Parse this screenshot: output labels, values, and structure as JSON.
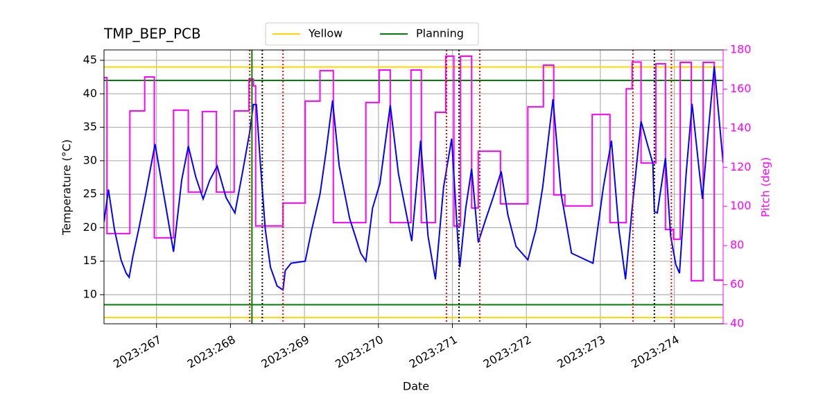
{
  "chart_data": {
    "type": "line",
    "title": "TMP_BEP_PCB",
    "xlabel": "Date",
    "ylabel": "Temperature (°C)",
    "y2label": "Pitch (deg)",
    "y2color": "magenta",
    "xlim": [
      266.29,
      274.66
    ],
    "ylim": [
      5.65,
      46.55
    ],
    "y2lim": [
      40,
      180
    ],
    "xticks": [
      {
        "value": 267,
        "label": "2023:267"
      },
      {
        "value": 268,
        "label": "2023:268"
      },
      {
        "value": 269,
        "label": "2023:269"
      },
      {
        "value": 270,
        "label": "2023:270"
      },
      {
        "value": 271,
        "label": "2023:271"
      },
      {
        "value": 272,
        "label": "2023:272"
      },
      {
        "value": 273,
        "label": "2023:273"
      },
      {
        "value": 274,
        "label": "2023:274"
      }
    ],
    "yticks": [
      10,
      15,
      20,
      25,
      30,
      35,
      40,
      45
    ],
    "y2ticks": [
      40,
      60,
      80,
      100,
      120,
      140,
      160,
      180
    ],
    "grid": true,
    "legend": "upper center",
    "series": [
      {
        "color": "blue",
        "x": [
          266.29,
          266.35,
          266.43,
          266.52,
          266.59,
          266.63,
          266.68,
          266.76,
          266.85,
          266.98,
          267.13,
          267.23,
          267.34,
          267.43,
          267.53,
          267.63,
          267.72,
          267.82,
          267.94,
          268.06,
          268.16,
          268.26,
          268.31,
          268.35,
          268.4,
          268.47,
          268.54,
          268.63,
          268.71,
          268.74,
          268.82,
          269.01,
          269.1,
          269.21,
          269.29,
          269.38,
          269.47,
          269.61,
          269.76,
          269.83,
          269.92,
          270.02,
          270.16,
          270.27,
          270.45,
          270.57,
          270.67,
          270.77,
          270.88,
          270.99,
          271.07,
          271.1,
          271.18,
          271.26,
          271.35,
          271.44,
          271.55,
          271.66,
          271.75,
          271.86,
          272.02,
          272.13,
          272.22,
          272.36,
          272.47,
          272.61,
          272.9,
          273.04,
          273.15,
          273.25,
          273.34,
          273.43,
          273.55,
          273.64,
          273.71,
          273.73,
          273.77,
          273.88,
          273.95,
          274.02,
          274.07,
          274.16,
          274.24,
          274.33,
          274.38,
          274.45,
          274.54,
          274.66
        ],
        "values": [
          20.9,
          25.7,
          19.8,
          15.2,
          13.2,
          12.6,
          15.7,
          19.8,
          24.8,
          32.5,
          22.9,
          16.4,
          27.1,
          32.2,
          27.6,
          24.3,
          27.1,
          29.2,
          24.5,
          22.2,
          28.1,
          34.3,
          38.4,
          38.4,
          30.2,
          19.8,
          14.1,
          11.3,
          10.7,
          13.6,
          14.7,
          15.0,
          19.8,
          25.0,
          31.2,
          39.0,
          29.2,
          21.4,
          16.2,
          15.0,
          22.9,
          26.6,
          38.3,
          28.1,
          18.0,
          33.0,
          18.8,
          12.3,
          26.0,
          33.3,
          18.8,
          14.1,
          22.9,
          28.8,
          17.8,
          20.9,
          24.5,
          28.4,
          21.9,
          17.2,
          15.2,
          19.8,
          26.0,
          39.2,
          25.0,
          16.2,
          14.7,
          26.0,
          33.0,
          19.8,
          12.3,
          22.9,
          35.9,
          32.3,
          29.6,
          22.4,
          22.2,
          30.4,
          18.8,
          14.5,
          13.2,
          28.1,
          38.5,
          29.2,
          24.3,
          33.3,
          44.1,
          29.7
        ]
      },
      {
        "color": "magenta",
        "axis": "y2",
        "x": [
          266.29,
          266.33,
          266.33,
          266.64,
          266.64,
          266.84,
          266.84,
          266.97,
          266.97,
          267.23,
          267.23,
          267.43,
          267.43,
          267.62,
          267.62,
          267.81,
          267.81,
          268.05,
          268.05,
          268.25,
          268.25,
          268.31,
          268.31,
          268.34,
          268.34,
          268.71,
          268.71,
          269.01,
          269.01,
          269.21,
          269.21,
          269.39,
          269.39,
          269.83,
          269.83,
          270.01,
          270.01,
          270.16,
          270.16,
          270.44,
          270.44,
          270.58,
          270.58,
          270.77,
          270.77,
          270.91,
          270.91,
          271.02,
          271.02,
          271.11,
          271.11,
          271.26,
          271.26,
          271.35,
          271.35,
          271.65,
          271.65,
          272.02,
          272.02,
          272.23,
          272.23,
          272.37,
          272.37,
          272.52,
          272.52,
          272.89,
          272.89,
          273.13,
          273.13,
          273.35,
          273.35,
          273.43,
          273.43,
          273.55,
          273.55,
          273.75,
          273.75,
          273.88,
          273.88,
          273.99,
          273.99,
          274.08,
          274.08,
          274.23,
          274.23,
          274.39,
          274.39,
          274.54,
          274.54,
          274.66
        ],
        "values": [
          165.8,
          165.8,
          86.1,
          86.1,
          148.8,
          148.8,
          166.2,
          166.2,
          83.9,
          83.9,
          149.2,
          149.2,
          107.3,
          107.3,
          148.5,
          148.5,
          107.3,
          107.3,
          148.8,
          148.8,
          165.1,
          165.1,
          161.6,
          161.6,
          90.0,
          90.0,
          101.7,
          101.7,
          153.8,
          153.8,
          169.4,
          169.4,
          91.7,
          91.7,
          153.1,
          153.1,
          169.7,
          169.7,
          91.7,
          91.7,
          169.7,
          169.7,
          91.7,
          91.7,
          148.1,
          148.1,
          176.8,
          176.8,
          90.0,
          90.0,
          176.8,
          176.8,
          99.2,
          99.2,
          128.2,
          128.2,
          101.3,
          101.3,
          150.9,
          150.9,
          172.2,
          172.2,
          105.9,
          105.9,
          100.2,
          100.2,
          147.0,
          147.0,
          91.7,
          91.7,
          160.1,
          160.1,
          173.8,
          173.8,
          122.2,
          122.2,
          172.9,
          172.9,
          88.2,
          88.2,
          83.2,
          83.2,
          173.6,
          173.6,
          62.0,
          62.0,
          173.6,
          173.6,
          62.3,
          62.3
        ]
      }
    ],
    "hlines": [
      {
        "name": "Yellow",
        "color": "gold",
        "values": [
          44,
          6.6
        ]
      },
      {
        "name": "Planning",
        "color": "green",
        "values": [
          42,
          8.5
        ]
      }
    ],
    "vlines": [
      {
        "color": "red",
        "style": "dotted",
        "x": [
          268.26,
          268.71,
          270.92,
          271.37,
          273.44,
          273.96
        ]
      },
      {
        "color": "black",
        "style": "dotted",
        "x": [
          268.43,
          271.09,
          273.73
        ]
      },
      {
        "color": "green",
        "style": "solid",
        "x": [
          268.29
        ]
      }
    ]
  }
}
